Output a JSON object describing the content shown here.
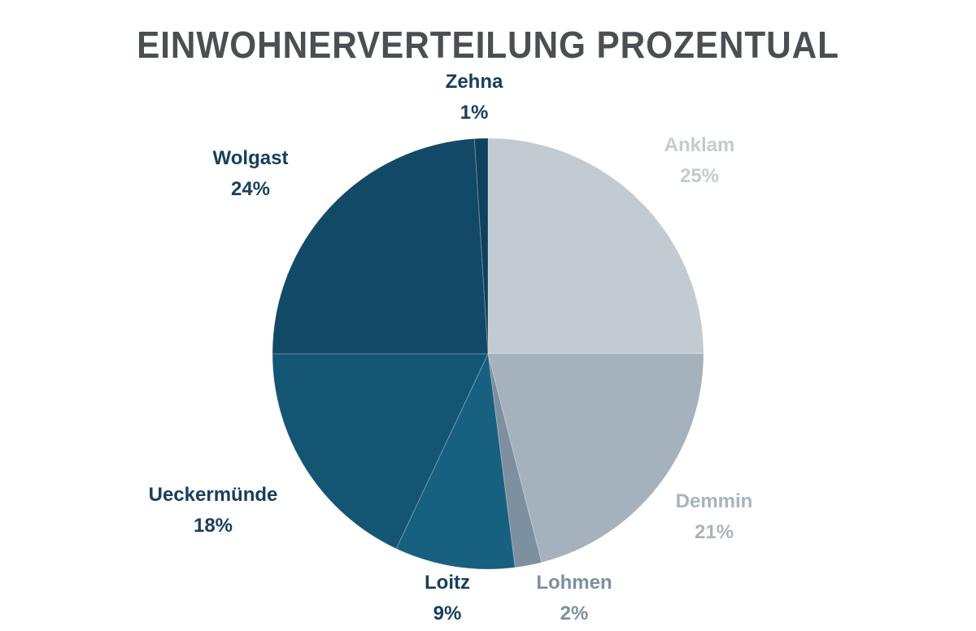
{
  "chart_data": {
    "type": "pie",
    "title": "EINWOHNERVERTEILUNG PROZENTUAL",
    "start": "12 o'clock, clockwise",
    "slices": [
      {
        "label": "Anklam",
        "value": 25,
        "display": "25%",
        "color": "#c2cad2",
        "label_color": "#c3cbd3"
      },
      {
        "label": "Demmin",
        "value": 21,
        "display": "21%",
        "color": "#a5b1bc",
        "label_color": "#a8b4bf"
      },
      {
        "label": "Lohmen",
        "value": 2,
        "display": "2%",
        "color": "#7d909f",
        "label_color": "#7d909f"
      },
      {
        "label": "Loitz",
        "value": 9,
        "display": "9%",
        "color": "#17607f",
        "label_color": "#173f5c"
      },
      {
        "label": "Ueckermünde",
        "value": 18,
        "display": "18%",
        "color": "#145574",
        "label_color": "#173f5c"
      },
      {
        "label": "Wolgast",
        "value": 24,
        "display": "24%",
        "color": "#124966",
        "label_color": "#173f5c"
      },
      {
        "label": "Zehna",
        "value": 1,
        "display": "1%",
        "color": "#0f405c",
        "label_color": "#173f5c"
      }
    ]
  }
}
